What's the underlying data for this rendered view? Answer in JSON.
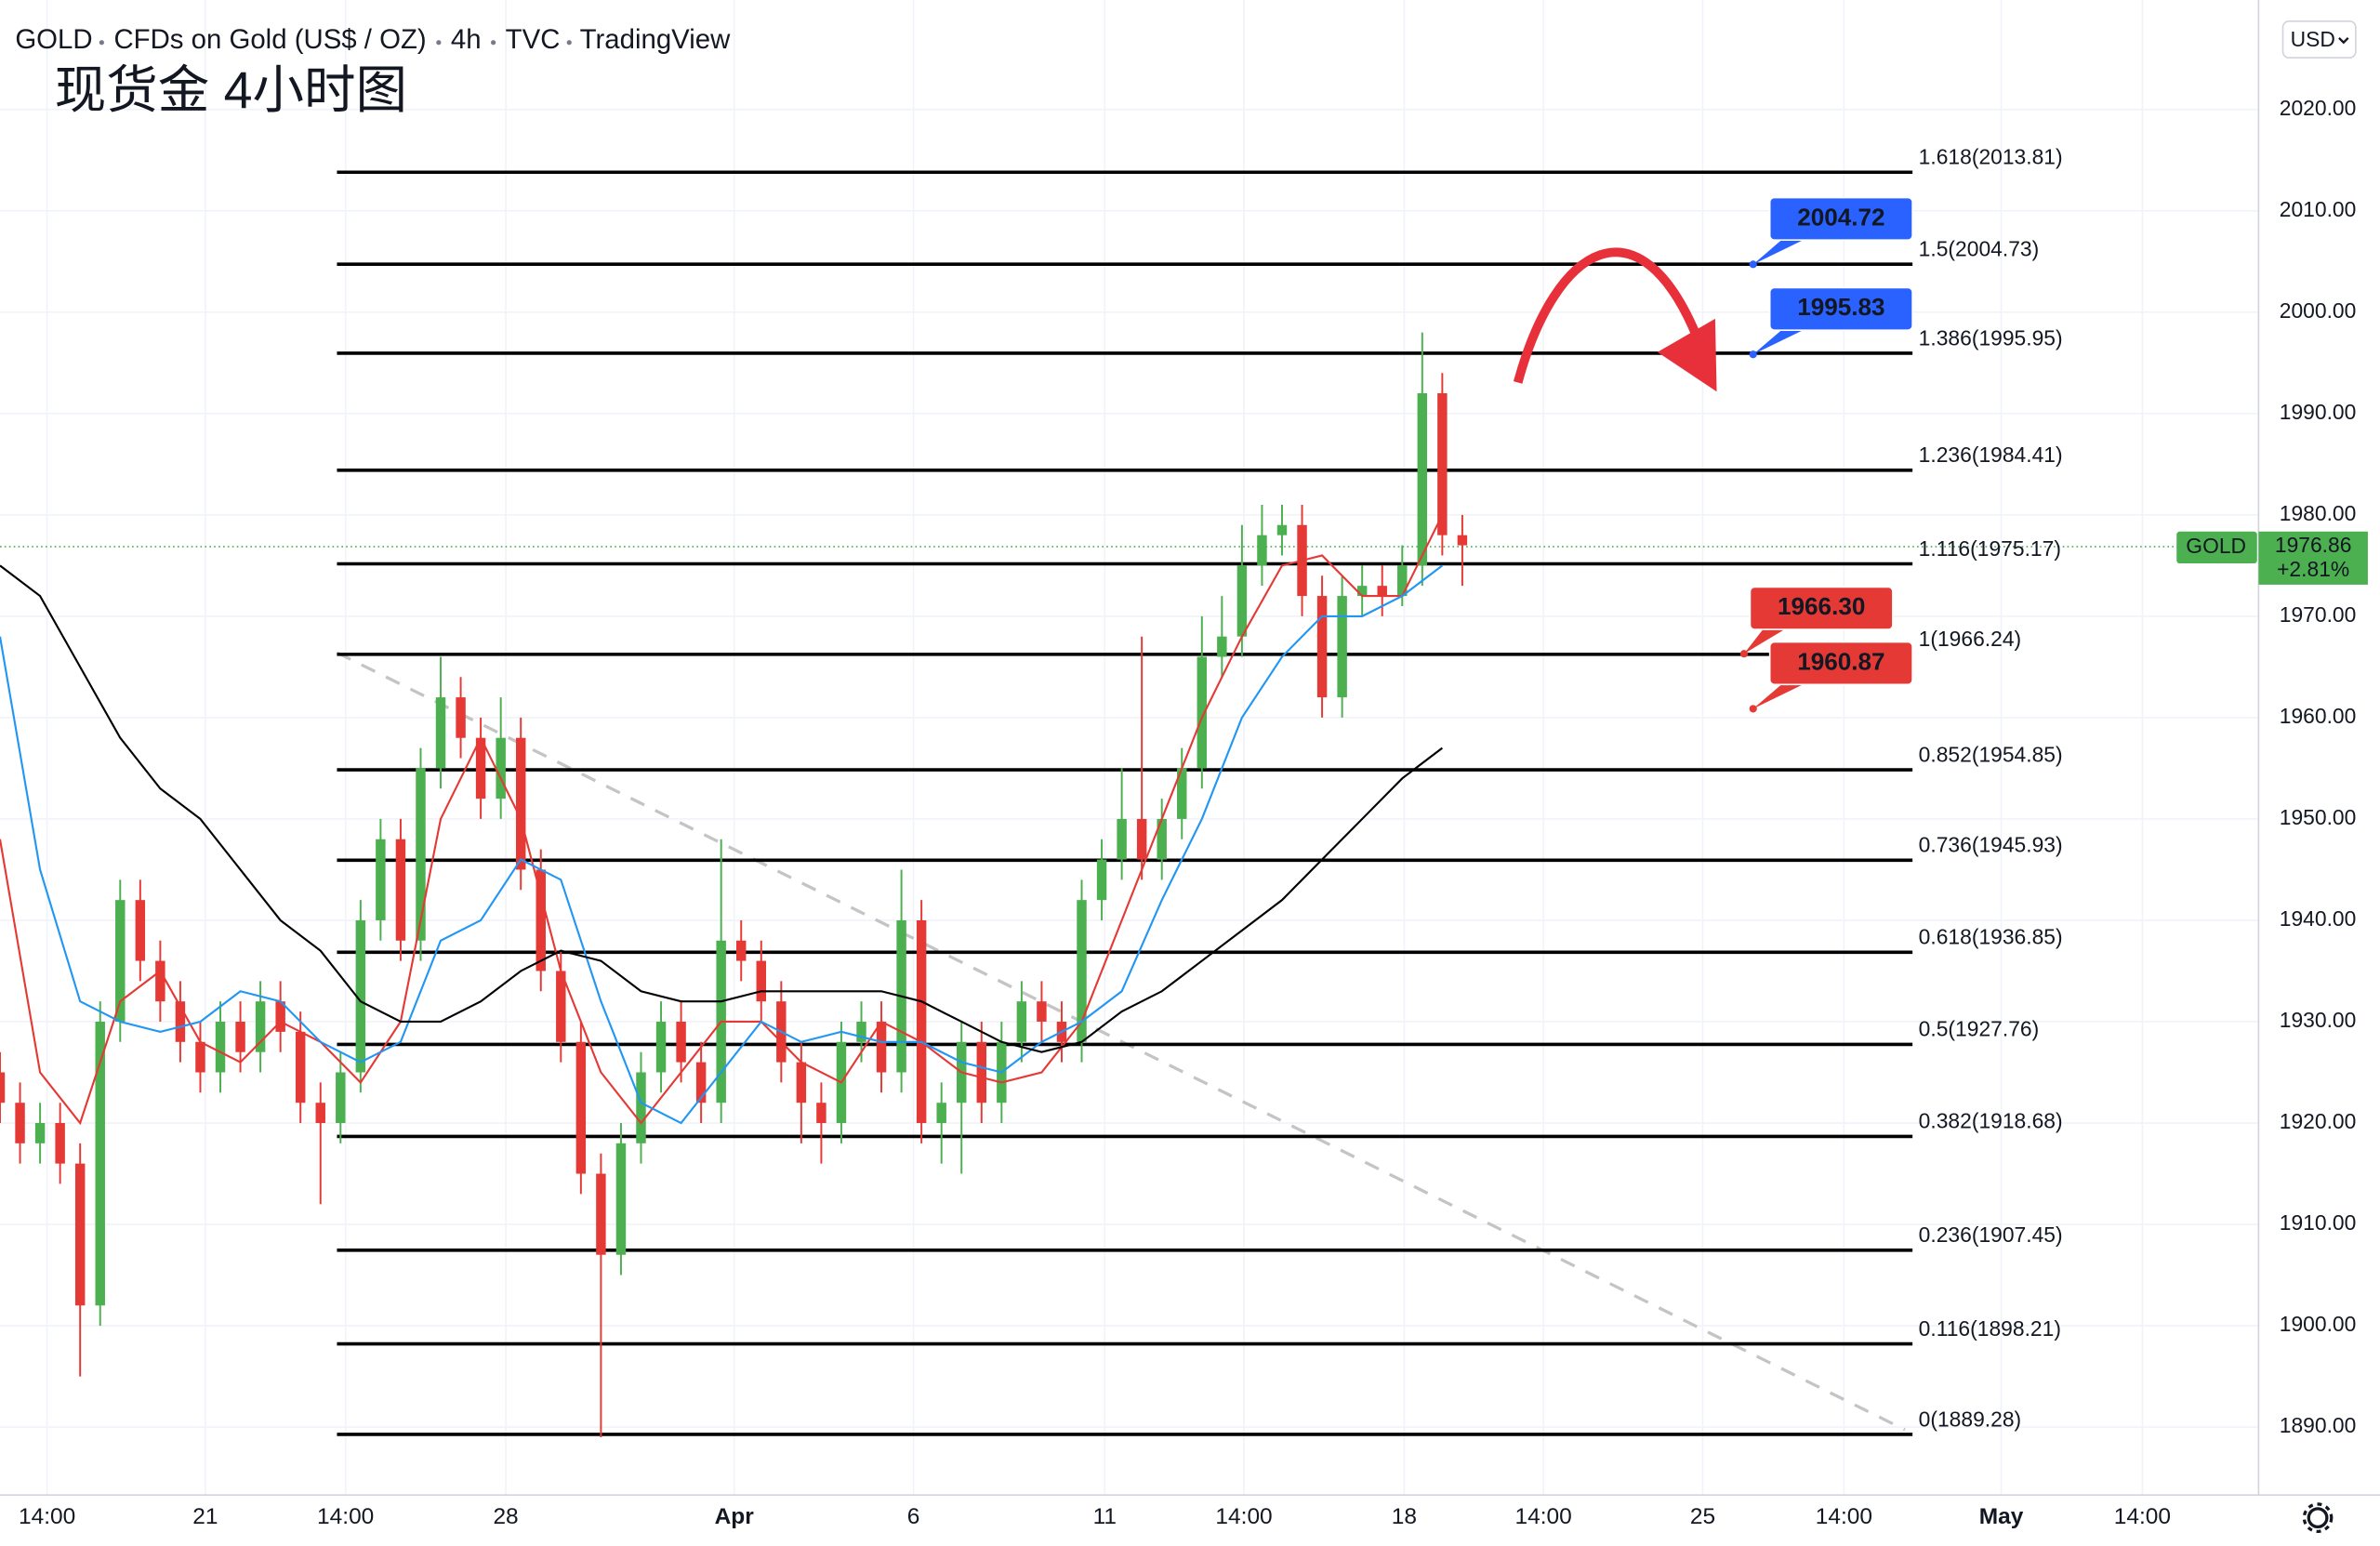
{
  "chart_data": {
    "type": "candlestick",
    "header": {
      "symbol": "GOLD",
      "description": "CFDs on Gold (US$ / OZ)",
      "interval": "4h",
      "source": "TVC",
      "platform": "TradingView"
    },
    "title": "现货金 4小时图",
    "currency": "USD",
    "xlim": [
      0,
      225.5
    ],
    "xticks": [
      {
        "value": 4.7,
        "label": "14:00"
      },
      {
        "value": 20.5,
        "label": "21"
      },
      {
        "value": 34.5,
        "label": "14:00"
      },
      {
        "value": 50.5,
        "label": "28"
      },
      {
        "value": 73.3,
        "label": "Apr"
      },
      {
        "value": 91.2,
        "label": "6"
      },
      {
        "value": 110.3,
        "label": "11"
      },
      {
        "value": 124.2,
        "label": "14:00"
      },
      {
        "value": 140.2,
        "label": "18"
      },
      {
        "value": 154.1,
        "label": "14:00"
      },
      {
        "value": 170,
        "label": "25"
      },
      {
        "value": 184.1,
        "label": "14:00"
      },
      {
        "value": 199.8,
        "label": "May"
      },
      {
        "value": 213.9,
        "label": "14:00"
      }
    ],
    "ylim": [
      1883.3,
      2030.8
    ],
    "yticks": [
      {
        "value": 1890,
        "label": "1890.00"
      },
      {
        "value": 1900,
        "label": "1900.00"
      },
      {
        "value": 1910,
        "label": "1910.00"
      },
      {
        "value": 1920,
        "label": "1920.00"
      },
      {
        "value": 1930,
        "label": "1930.00"
      },
      {
        "value": 1940,
        "label": "1940.00"
      },
      {
        "value": 1950,
        "label": "1950.00"
      },
      {
        "value": 1960,
        "label": "1960.00"
      },
      {
        "value": 1970,
        "label": "1970.00"
      },
      {
        "value": 1980,
        "label": "1980.00"
      },
      {
        "value": 1990,
        "label": "1990.00"
      },
      {
        "value": 2000,
        "label": "2000.00"
      },
      {
        "value": 2010,
        "label": "2010.00"
      },
      {
        "value": 2020,
        "label": "2020.00"
      }
    ],
    "grid": true,
    "up_color": "#4caf50",
    "down_color": "#e53935",
    "candles": {
      "x": [
        0,
        2,
        4,
        6,
        8,
        10,
        12,
        14,
        16,
        18,
        20,
        22,
        24,
        26,
        28,
        30,
        32,
        34,
        36,
        38,
        40,
        42,
        44,
        46,
        48,
        50,
        52,
        54,
        56,
        58,
        60,
        62,
        64,
        66,
        68,
        70,
        72,
        74,
        76,
        78,
        80,
        82,
        84,
        86,
        88,
        90,
        92,
        94,
        96,
        98,
        100,
        102,
        104,
        106,
        108,
        110,
        112,
        114,
        116,
        118,
        120,
        122,
        124,
        126,
        128,
        130,
        132,
        134,
        136,
        138,
        140,
        142,
        144,
        146
      ],
      "open": [
        1925,
        1922,
        1918,
        1920,
        1916,
        1902,
        1930,
        1942,
        1936,
        1932,
        1928,
        1925,
        1930,
        1927,
        1932,
        1929,
        1922,
        1920,
        1925,
        1940,
        1948,
        1938,
        1955,
        1962,
        1958,
        1952,
        1958,
        1945,
        1935,
        1928,
        1915,
        1907,
        1918,
        1925,
        1930,
        1926,
        1922,
        1938,
        1936,
        1932,
        1926,
        1922,
        1920,
        1928,
        1930,
        1925,
        1940,
        1920,
        1922,
        1928,
        1922,
        1928,
        1932,
        1930,
        1928,
        1942,
        1946,
        1950,
        1946,
        1950,
        1955,
        1966,
        1968,
        1975,
        1978,
        1979,
        1972,
        1962,
        1972,
        1973,
        1972,
        1975,
        1992,
        1978
      ],
      "high": [
        1927,
        1924,
        1922,
        1922,
        1918,
        1932,
        1944,
        1944,
        1938,
        1934,
        1930,
        1932,
        1932,
        1934,
        1934,
        1931,
        1924,
        1927,
        1942,
        1950,
        1950,
        1957,
        1966,
        1964,
        1960,
        1962,
        1960,
        1947,
        1937,
        1930,
        1917,
        1920,
        1927,
        1932,
        1932,
        1928,
        1948,
        1940,
        1938,
        1934,
        1928,
        1924,
        1930,
        1932,
        1932,
        1945,
        1942,
        1924,
        1930,
        1930,
        1930,
        1934,
        1934,
        1932,
        1944,
        1948,
        1955,
        1968,
        1952,
        1957,
        1970,
        1972,
        1979,
        1981,
        1981,
        1981,
        1974,
        1974,
        1975,
        1975,
        1977,
        1998,
        1994,
        1980
      ],
      "low": [
        1920,
        1916,
        1916,
        1914,
        1895,
        1900,
        1928,
        1934,
        1930,
        1926,
        1923,
        1923,
        1925,
        1925,
        1927,
        1920,
        1912,
        1918,
        1923,
        1938,
        1936,
        1936,
        1953,
        1956,
        1950,
        1950,
        1943,
        1933,
        1926,
        1913,
        1889,
        1905,
        1916,
        1923,
        1924,
        1920,
        1920,
        1934,
        1930,
        1924,
        1918,
        1916,
        1918,
        1926,
        1923,
        1923,
        1918,
        1916,
        1915,
        1920,
        1920,
        1926,
        1928,
        1926,
        1926,
        1940,
        1944,
        1944,
        1944,
        1948,
        1953,
        1964,
        1966,
        1973,
        1976,
        1970,
        1960,
        1960,
        1970,
        1970,
        1971,
        1973,
        1976,
        1973
      ],
      "close": [
        1922,
        1918,
        1920,
        1916,
        1902,
        1930,
        1942,
        1936,
        1932,
        1928,
        1925,
        1930,
        1927,
        1932,
        1929,
        1922,
        1920,
        1925,
        1940,
        1948,
        1938,
        1955,
        1962,
        1958,
        1952,
        1958,
        1945,
        1935,
        1928,
        1915,
        1907,
        1918,
        1925,
        1930,
        1926,
        1922,
        1938,
        1936,
        1932,
        1926,
        1922,
        1920,
        1928,
        1930,
        1925,
        1940,
        1920,
        1922,
        1928,
        1922,
        1928,
        1932,
        1930,
        1928,
        1942,
        1946,
        1950,
        1946,
        1950,
        1955,
        1966,
        1968,
        1975,
        1978,
        1979,
        1972,
        1962,
        1972,
        1973,
        1972,
        1975,
        1992,
        1978,
        1977
      ]
    },
    "series_x": [
      0,
      4,
      8,
      12,
      16,
      20,
      24,
      28,
      32,
      36,
      40,
      44,
      48,
      52,
      56,
      60,
      64,
      68,
      72,
      76,
      80,
      84,
      88,
      92,
      96,
      100,
      104,
      108,
      112,
      116,
      120,
      124,
      128,
      132,
      136,
      140,
      144
    ],
    "series": [
      {
        "color": "#e53935",
        "values": [
          1948,
          1925,
          1920,
          1932,
          1935,
          1928,
          1926,
          1930,
          1928,
          1924,
          1930,
          1950,
          1958,
          1950,
          1935,
          1925,
          1920,
          1925,
          1930,
          1930,
          1926,
          1924,
          1930,
          1928,
          1925,
          1924,
          1925,
          1930,
          1940,
          1950,
          1960,
          1968,
          1975,
          1976,
          1972,
          1972,
          1980
        ]
      },
      {
        "color": "#2196f3",
        "values": [
          1968,
          1945,
          1932,
          1930,
          1929,
          1930,
          1933,
          1932,
          1928,
          1926,
          1928,
          1938,
          1940,
          1946,
          1944,
          1932,
          1922,
          1920,
          1925,
          1930,
          1928,
          1929,
          1928,
          1928,
          1926,
          1925,
          1928,
          1930,
          1933,
          1942,
          1950,
          1960,
          1966,
          1970,
          1970,
          1972,
          1975
        ]
      },
      {
        "color": "#000000",
        "values": [
          1975,
          1972,
          1965,
          1958,
          1953,
          1950,
          1945,
          1940,
          1937,
          1932,
          1930,
          1930,
          1932,
          1935,
          1937,
          1936,
          1933,
          1932,
          1932,
          1933,
          1933,
          1933,
          1933,
          1932,
          1930,
          1928,
          1927,
          1928,
          1931,
          1933,
          1936,
          1939,
          1942,
          1946,
          1950,
          1954,
          1957
        ]
      }
    ],
    "fib_levels": [
      {
        "value": 2013.81,
        "label": "1.618(2013.81)"
      },
      {
        "value": 2004.73,
        "label": "1.5(2004.73)"
      },
      {
        "value": 1995.95,
        "label": "1.386(1995.95)"
      },
      {
        "value": 1984.41,
        "label": "1.236(1984.41)"
      },
      {
        "value": 1975.17,
        "label": "1.116(1975.17)"
      },
      {
        "value": 1966.24,
        "label": "1(1966.24)"
      },
      {
        "value": 1954.85,
        "label": "0.852(1954.85)"
      },
      {
        "value": 1945.93,
        "label": "0.736(1945.93)"
      },
      {
        "value": 1936.85,
        "label": "0.618(1936.85)"
      },
      {
        "value": 1927.76,
        "label": "0.5(1927.76)"
      },
      {
        "value": 1918.68,
        "label": "0.382(1918.68)"
      },
      {
        "value": 1907.45,
        "label": "0.236(1907.45)"
      },
      {
        "value": 1898.21,
        "label": "0.116(1898.21)"
      },
      {
        "value": 1889.28,
        "label": "0(1889.28)"
      }
    ],
    "price_tags": [
      {
        "value": 2004.72,
        "label": "2004.72",
        "color": "#2962ff"
      },
      {
        "value": 1995.83,
        "label": "1995.83",
        "color": "#2962ff"
      },
      {
        "value": 1966.3,
        "label": "1966.30",
        "color": "#e53935"
      },
      {
        "value": 1960.87,
        "label": "1960.87",
        "color": "#e53935"
      }
    ],
    "last_price": {
      "value": 1976.86,
      "label": "1976.86",
      "change": "+2.81%",
      "symbol": "GOLD",
      "color": "#4caf50"
    }
  }
}
